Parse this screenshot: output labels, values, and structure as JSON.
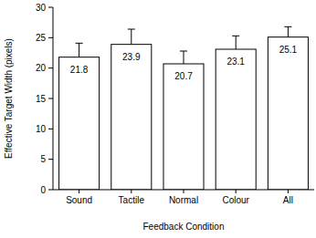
{
  "chart_data": {
    "type": "bar",
    "x_label": "Feedback Condition",
    "y_label": "Effective Target Width (pixels)",
    "categories": [
      "Sound",
      "Tactile",
      "Normal",
      "Colour",
      "All"
    ],
    "values": [
      21.8,
      23.9,
      20.7,
      23.1,
      25.1
    ],
    "errors": [
      2.3,
      2.5,
      2.1,
      2.2,
      1.7
    ],
    "color": "#ffffff",
    "ylim": [
      0,
      30
    ],
    "yticks": [
      0,
      5,
      10,
      15,
      20,
      25,
      30
    ],
    "grid": false,
    "data_labels": true
  }
}
